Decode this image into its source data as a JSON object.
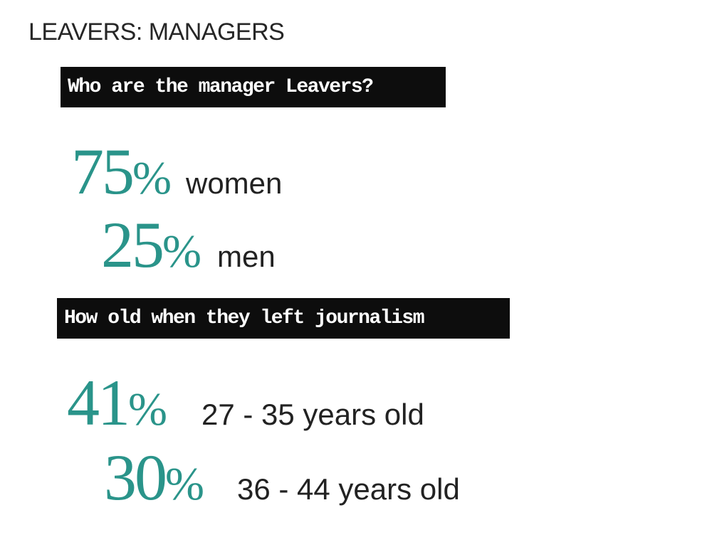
{
  "title": "LEAVERS: MANAGERS",
  "section_gender": {
    "heading": "Who are the manager Leavers?",
    "stats": [
      {
        "value": "75",
        "unit": "%",
        "label": "women"
      },
      {
        "value": "25",
        "unit": "%",
        "label": "men"
      }
    ]
  },
  "section_age": {
    "heading": "How old when they left journalism",
    "stats": [
      {
        "value": "41",
        "unit": "%",
        "label": "27 - 35 years old"
      },
      {
        "value": "30",
        "unit": "%",
        "label": "36 - 44 years old"
      }
    ]
  },
  "colors": {
    "accent": "#2a948a",
    "banner_bg": "#0d0d0d",
    "text": "#222222"
  }
}
